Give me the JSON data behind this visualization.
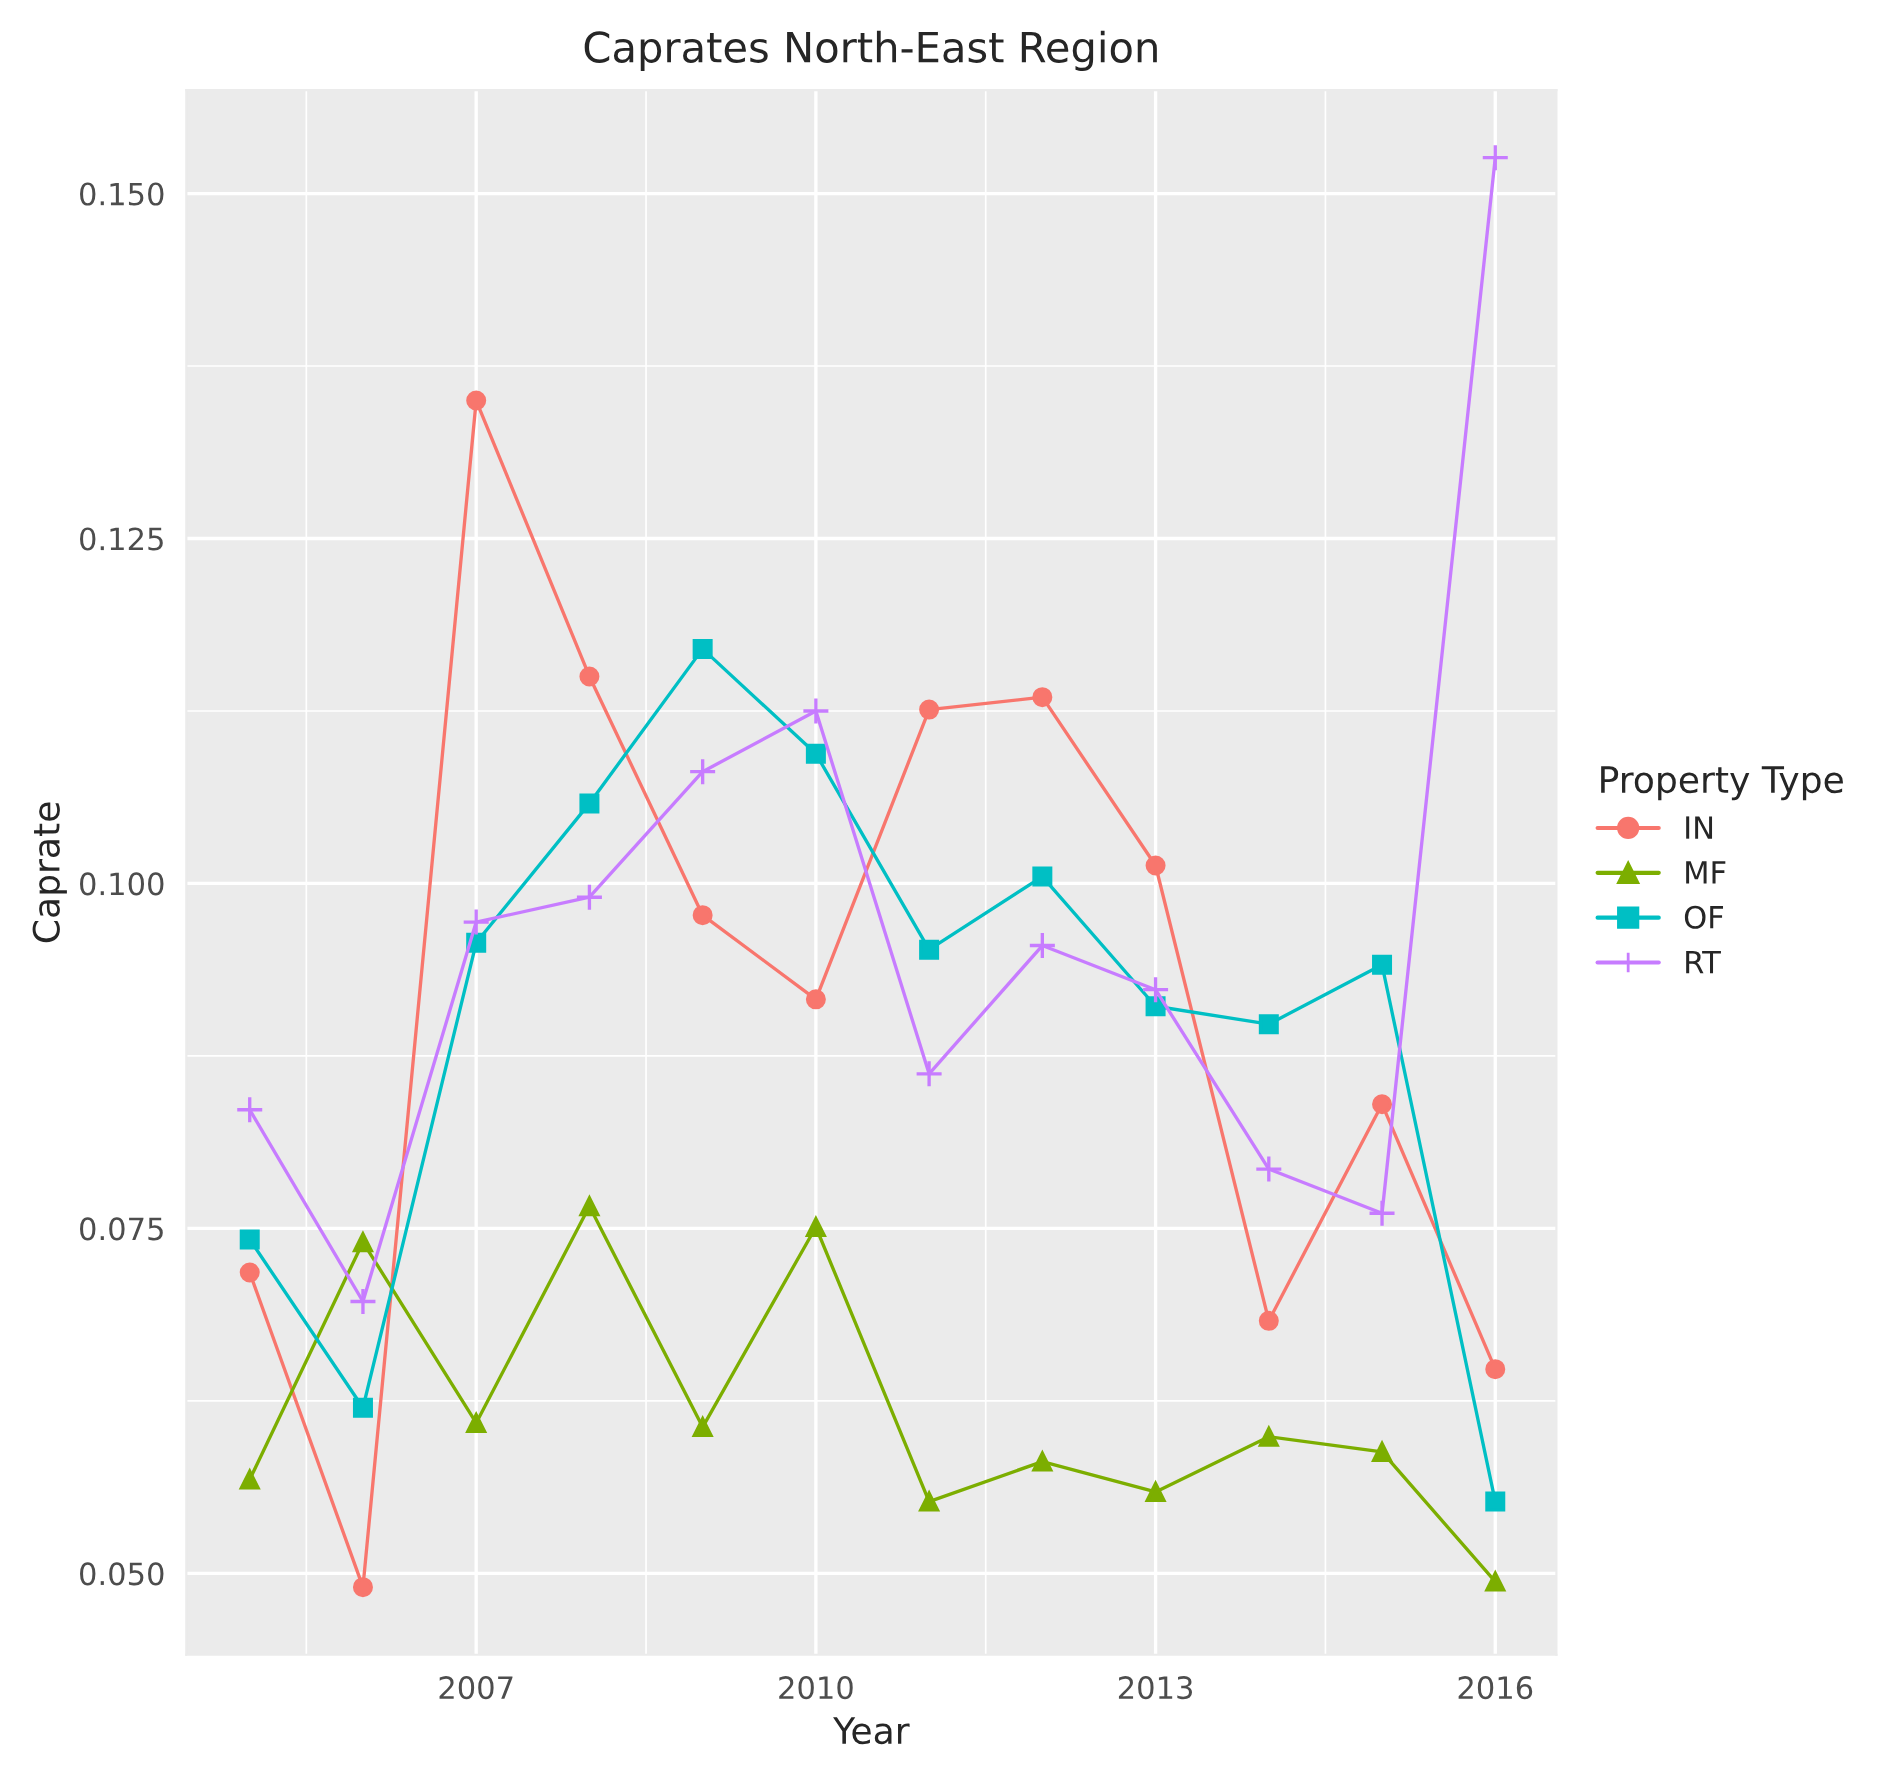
{
  "chart_data": {
    "type": "line",
    "title": "Caprates North-East Region",
    "xlabel": "Year",
    "ylabel": "Caprate",
    "legend_title": "Property Type",
    "x": [
      2005,
      2006,
      2007,
      2008,
      2009,
      2010,
      2011,
      2012,
      2013,
      2014,
      2015,
      2016
    ],
    "series": [
      {
        "name": "IN",
        "color": "#f8766d",
        "marker": "circle",
        "values": [
          0.0718,
          0.049,
          0.135,
          0.115,
          0.0977,
          0.0916,
          0.1126,
          0.1135,
          0.1013,
          0.0683,
          0.084,
          0.0648
        ]
      },
      {
        "name": "MF",
        "color": "#7cae00",
        "marker": "triangle",
        "values": [
          0.0568,
          0.074,
          0.0609,
          0.0766,
          0.0606,
          0.0751,
          0.0552,
          0.0581,
          0.0559,
          0.0599,
          0.0588,
          0.0494
        ]
      },
      {
        "name": "OF",
        "color": "#00bfc4",
        "marker": "square",
        "values": [
          0.0742,
          0.062,
          0.0957,
          0.1058,
          0.117,
          0.1094,
          0.0952,
          0.1005,
          0.0911,
          0.0898,
          0.0941,
          0.0552
        ]
      },
      {
        "name": "RT",
        "color": "#c77cff",
        "marker": "cross",
        "values": [
          0.0836,
          0.0697,
          0.0972,
          0.099,
          0.1081,
          0.1125,
          0.0862,
          0.0955,
          0.0923,
          0.0793,
          0.0761,
          0.1526
        ]
      }
    ],
    "xlim": [
      2004.44,
      2016.54
    ],
    "ylim": [
      0.0441,
      0.1575
    ],
    "xticks": [
      2007,
      2010,
      2013,
      2016
    ],
    "yticks": [
      {
        "value": 0.05,
        "label": "0.050"
      },
      {
        "value": 0.075,
        "label": "0.075"
      },
      {
        "value": 0.1,
        "label": "0.100"
      },
      {
        "value": 0.125,
        "label": "0.125"
      },
      {
        "value": 0.15,
        "label": "0.150"
      }
    ],
    "grid": true,
    "legend": "right",
    "line_style": "solid"
  }
}
